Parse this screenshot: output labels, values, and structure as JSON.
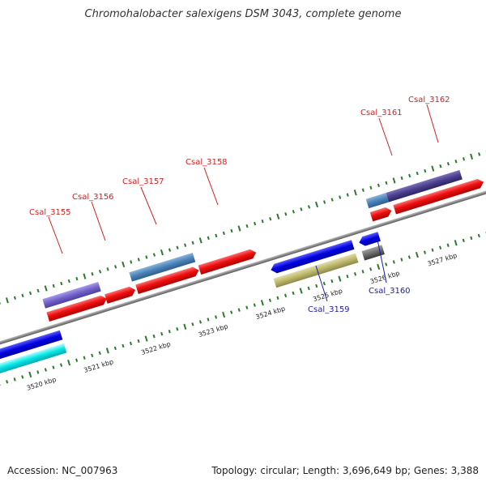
{
  "title": "Chromohalobacter salexigens DSM 3043, complete genome",
  "footer": {
    "accession": "Accession: NC_007963",
    "info": "Topology: circular; Length: 3,696,649 bp; Genes: 3,388"
  },
  "colors": {
    "forward_label": "#d42020",
    "reverse_label": "#1c1cb0",
    "backbone": "#8a8a8a",
    "tick": "#2a7a2a"
  },
  "scale_labels": [
    "3520 kbp",
    "3521 kbp",
    "3522 kbp",
    "3523 kbp",
    "3524 kbp",
    "3525 kbp",
    "3526 kbp",
    "3527 kbp"
  ],
  "gene_labels": {
    "Csal_3155": "Csal_3155",
    "Csal_3156": "Csal_3156",
    "Csal_3157": "Csal_3157",
    "Csal_3158": "Csal_3158",
    "Csal_3159": "Csal_3159",
    "Csal_3160": "Csal_3160",
    "Csal_3161": "Csal_3161",
    "Csal_3162": "Csal_3162"
  }
}
